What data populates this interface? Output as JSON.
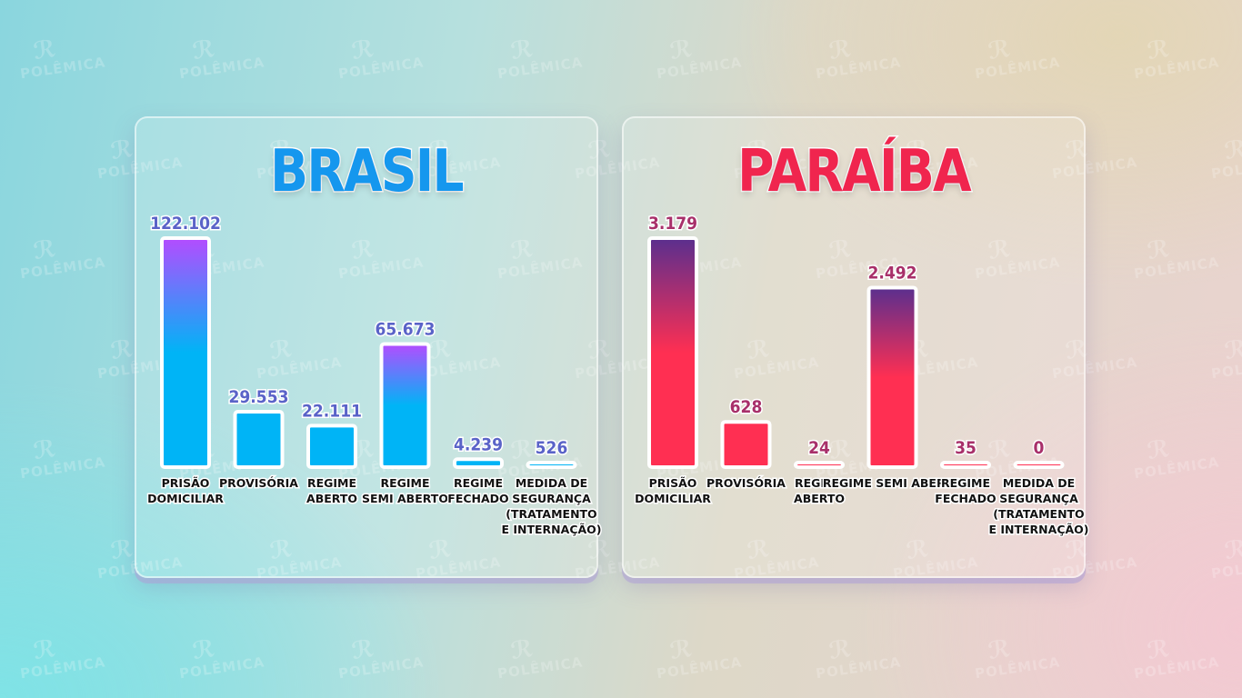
{
  "watermark_text": "POLÊMICA",
  "colors": {
    "brasil_title": "#1597ee",
    "brasil_bar": "#00b4f6",
    "brasil_bar_top": "#b44cff",
    "brasil_label": "#5a63c8",
    "paraiba_title": "#f0254e",
    "paraiba_bar": "#ff2f52",
    "paraiba_bar_top": "#5a2f8e",
    "paraiba_label": "#a8306a"
  },
  "chart_data": [
    {
      "type": "bar",
      "title": "BRASIL",
      "categories": [
        [
          "PRISÃO",
          "DOMICILIAR"
        ],
        [
          "PROVISÓRIA"
        ],
        [
          "REGIME",
          "ABERTO"
        ],
        [
          "REGIME",
          "SEMI ABERTO"
        ],
        [
          "REGIME",
          "FECHADO"
        ],
        [
          "MEDIDA DE",
          "SEGURANÇA",
          "(TRATAMENTO",
          "E INTERNAÇÃO)"
        ]
      ],
      "values": [
        122102,
        29553,
        22111,
        65673,
        4239,
        526
      ],
      "value_labels": [
        "122.102",
        "29.553",
        "22.111",
        "65.673",
        "4.239",
        "526"
      ],
      "ylim": [
        0,
        122102
      ],
      "grid": false,
      "legend": "none"
    },
    {
      "type": "bar",
      "title": "PARAÍBA",
      "categories": [
        [
          "PRISÃO",
          "DOMICILIAR"
        ],
        [
          "PROVISÓRIA"
        ],
        [
          "REGIME",
          "ABERTO"
        ],
        [
          "REGIME SEMI ABERTO"
        ],
        [
          "REGIME",
          "FECHADO"
        ],
        [
          "MEDIDA DE",
          "SEGURANÇA",
          "(TRATAMENTO",
          "E INTERNAÇÃO)"
        ]
      ],
      "values": [
        3179,
        628,
        24,
        2492,
        35,
        0
      ],
      "value_labels": [
        "3.179",
        "628",
        "24",
        "2.492",
        "35",
        "0"
      ],
      "ylim": [
        0,
        3179
      ],
      "grid": false,
      "legend": "none"
    }
  ]
}
